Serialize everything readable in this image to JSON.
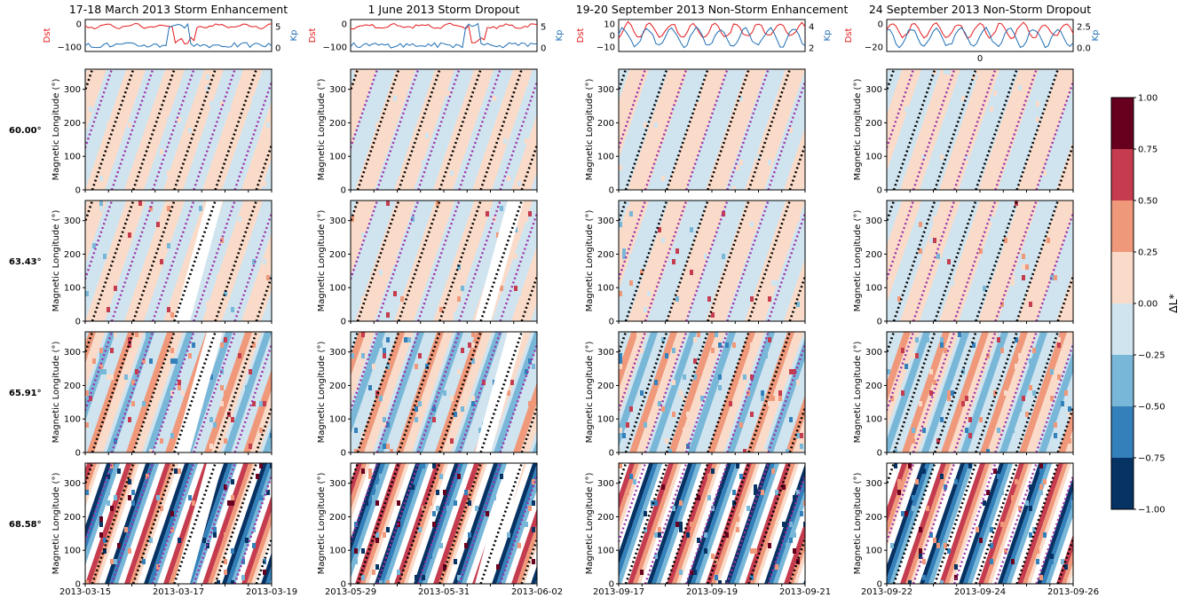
{
  "columns": [
    {
      "title": "17-18 March 2013 Storm Enhancement",
      "x_ticks": [
        "2013-03-15",
        "2013-03-17",
        "2013-03-19"
      ],
      "index_xticks": []
    },
    {
      "title": "1 June 2013 Storm Dropout",
      "x_ticks": [
        "2013-05-29",
        "2013-05-31",
        "2013-06-02"
      ],
      "index_xticks": []
    },
    {
      "title": "19-20 September 2013 Non-Storm Enhancement",
      "x_ticks": [
        "2013-09-17",
        "2013-09-19",
        "2013-09-21"
      ],
      "index_xticks": []
    },
    {
      "title": "24 September 2013 Non-Storm Dropout",
      "x_ticks": [
        "2013-09-22",
        "2013-09-24",
        "2013-09-26"
      ],
      "index_xticks": [
        "0"
      ]
    }
  ],
  "index_panels": [
    {
      "dst_ticks": [
        "0",
        "−100"
      ],
      "kp_ticks": [
        "5",
        "0"
      ]
    },
    {
      "dst_ticks": [
        "0",
        "−100"
      ],
      "kp_ticks": [
        "5",
        "0"
      ]
    },
    {
      "dst_ticks": [
        "10",
        "0",
        "−10"
      ],
      "kp_ticks": [
        "4",
        "2"
      ]
    },
    {
      "dst_ticks": [
        "0",
        "−20"
      ],
      "kp_ticks": [
        "2.5",
        "0.0"
      ]
    }
  ],
  "dst_label": "Dst",
  "kp_label": "Kp",
  "rows": [
    {
      "label": "60.00°"
    },
    {
      "label": "63.43°"
    },
    {
      "label": "65.91°"
    },
    {
      "label": "68.58°"
    }
  ],
  "ylabel": "Magnetic Longitude (°)",
  "y_ticks": [
    "0",
    "100",
    "200",
    "300"
  ],
  "colorbar": {
    "label": "ΔL*",
    "ticks": [
      "1.00",
      "0.75",
      "0.50",
      "0.25",
      "0.00",
      "−0.25",
      "−0.50",
      "−0.75",
      "−1.00"
    ],
    "colors": [
      "#67001f",
      "#c43c4e",
      "#f0987a",
      "#fadbc9",
      "#d0e4ef",
      "#79b7d8",
      "#3380ba",
      "#063264"
    ]
  },
  "colors": {
    "dst": "#e41a1c",
    "kp": "#1f6fb4",
    "trace_black": "#000000",
    "trace_purple": "#9b30a8"
  },
  "chart_data": {
    "type": "heatmap",
    "description_rows": "magnetic latitude",
    "x_unit": "date",
    "y_range": [
      0,
      360
    ],
    "color_range": [
      -1.0,
      1.0
    ],
    "panels_per_column": 4,
    "index_series": [
      {
        "name": "Dst",
        "ylim_event_1": [
          -130,
          20
        ]
      },
      {
        "name": "Kp",
        "ylim_event_1": [
          0,
          7
        ]
      }
    ]
  }
}
